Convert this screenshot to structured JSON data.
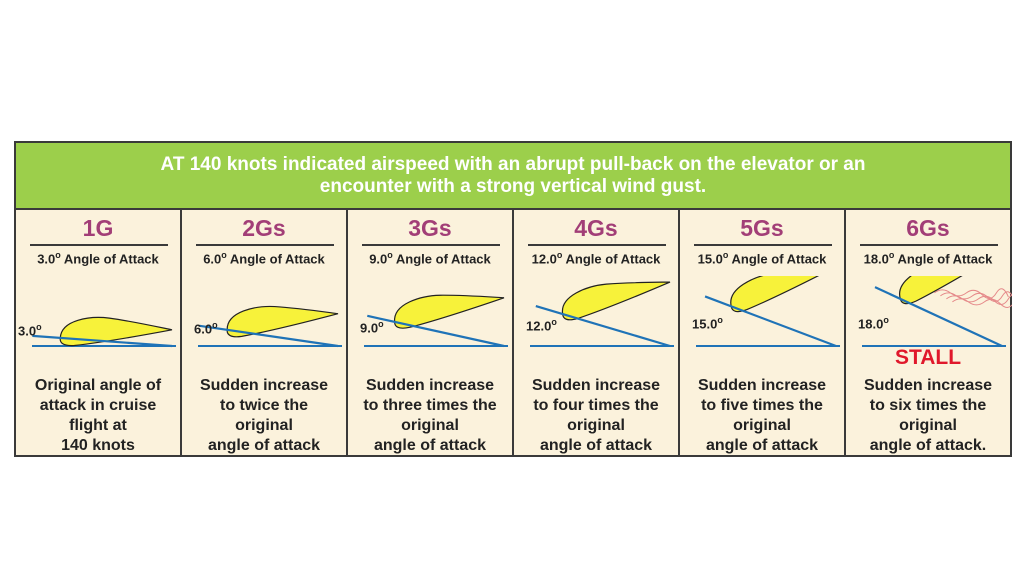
{
  "header": {
    "title_line1": "AT 140 knots indicated airspeed with an abrupt pull-back on the elevator or an",
    "title_line2": "encounter with a strong vertical wind gust."
  },
  "aoa_suffix": "Angle of Attack",
  "degree_mark": "o",
  "panels": [
    {
      "g": "1G",
      "angle": "3.0",
      "angle_deg": 3,
      "desc": [
        "Original angle of",
        "attack in cruise",
        "flight at",
        "140 knots"
      ]
    },
    {
      "g": "2Gs",
      "angle": "6.0",
      "angle_deg": 6,
      "desc": [
        "Sudden increase",
        "to twice the",
        "original",
        "angle of attack"
      ]
    },
    {
      "g": "3Gs",
      "angle": "9.0",
      "angle_deg": 9,
      "desc": [
        "Sudden increase",
        "to three times the",
        "original",
        "angle of attack"
      ]
    },
    {
      "g": "4Gs",
      "angle": "12.0",
      "angle_deg": 12,
      "desc": [
        "Sudden increase",
        "to four times the",
        "original",
        "angle of attack"
      ]
    },
    {
      "g": "5Gs",
      "angle": "15.0",
      "angle_deg": 15,
      "desc": [
        "Sudden increase",
        "to five times the",
        "original",
        "angle of attack"
      ]
    },
    {
      "g": "6Gs",
      "angle": "18.0",
      "angle_deg": 18,
      "desc": [
        "Sudden increase",
        "to six times the",
        "original",
        "angle of attack."
      ],
      "stall_label": "STALL"
    }
  ],
  "colors": {
    "header_bg": "#9ccf4b",
    "panel_bg": "#fbf2dc",
    "g_label": "#a23e77",
    "airfoil_fill": "#f7f23a",
    "chord_line": "#1f73b7",
    "stall": "#e0182b",
    "turbulence": "#e58a8a"
  }
}
